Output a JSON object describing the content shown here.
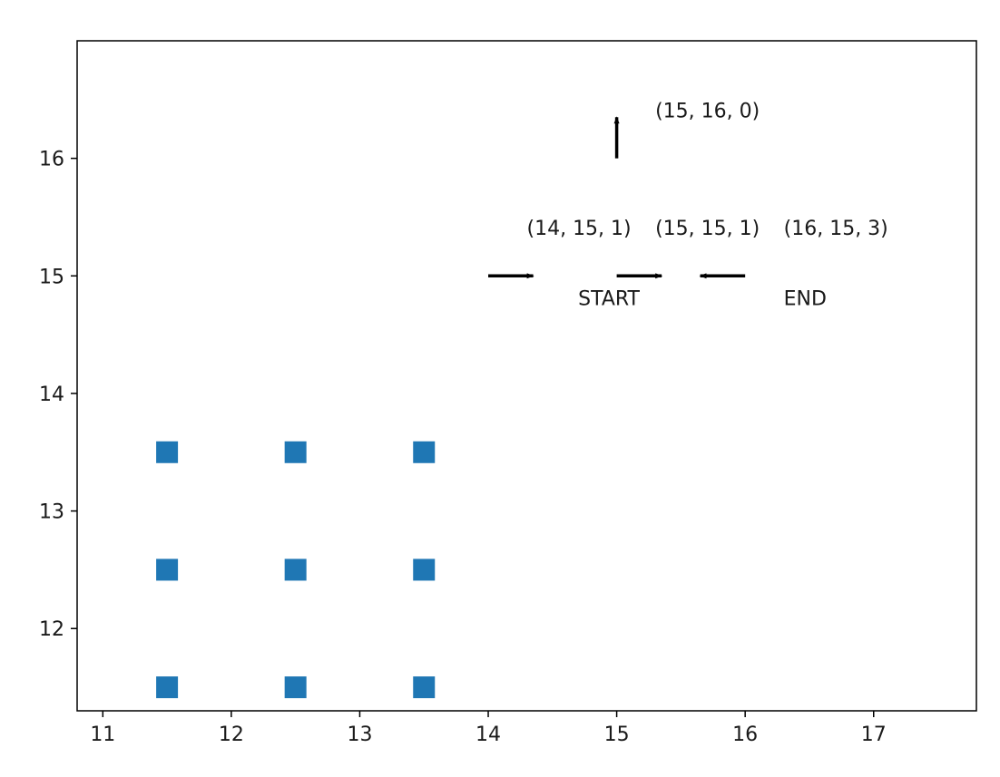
{
  "chart_data": {
    "type": "scatter",
    "title": "",
    "xlabel": "",
    "ylabel": "",
    "xlim": [
      10.8,
      17.8
    ],
    "ylim": [
      11.3,
      17.0
    ],
    "grid": false,
    "x_ticks": [
      11,
      12,
      13,
      14,
      15,
      16,
      17
    ],
    "y_ticks": [
      12,
      13,
      14,
      15,
      16
    ],
    "marker_color": "#1f77b4",
    "arrow_color": "#000000",
    "points": [
      {
        "x": 11.5,
        "y": 11.5
      },
      {
        "x": 12.5,
        "y": 11.5
      },
      {
        "x": 13.5,
        "y": 11.5
      },
      {
        "x": 11.5,
        "y": 12.5
      },
      {
        "x": 12.5,
        "y": 12.5
      },
      {
        "x": 13.5,
        "y": 12.5
      },
      {
        "x": 11.5,
        "y": 13.5
      },
      {
        "x": 12.5,
        "y": 13.5
      },
      {
        "x": 13.5,
        "y": 13.5
      }
    ],
    "arrows": [
      {
        "x": 15,
        "y": 16,
        "dx": 0,
        "dy": 0.35
      },
      {
        "x": 14,
        "y": 15,
        "dx": 0.35,
        "dy": 0
      },
      {
        "x": 15,
        "y": 15,
        "dx": 0.35,
        "dy": 0
      },
      {
        "x": 16,
        "y": 15,
        "dx": -0.35,
        "dy": 0
      }
    ],
    "annotations": [
      {
        "text": "(15, 16, 0)",
        "x": 15.3,
        "y": 16.35
      },
      {
        "text": "(14, 15, 1)",
        "x": 14.3,
        "y": 15.35
      },
      {
        "text": "(15, 15, 1)",
        "x": 15.3,
        "y": 15.35
      },
      {
        "text": "(16, 15, 3)",
        "x": 16.3,
        "y": 15.35
      },
      {
        "text": "START",
        "x": 14.7,
        "y": 14.75
      },
      {
        "text": "END",
        "x": 16.3,
        "y": 14.75
      }
    ]
  }
}
